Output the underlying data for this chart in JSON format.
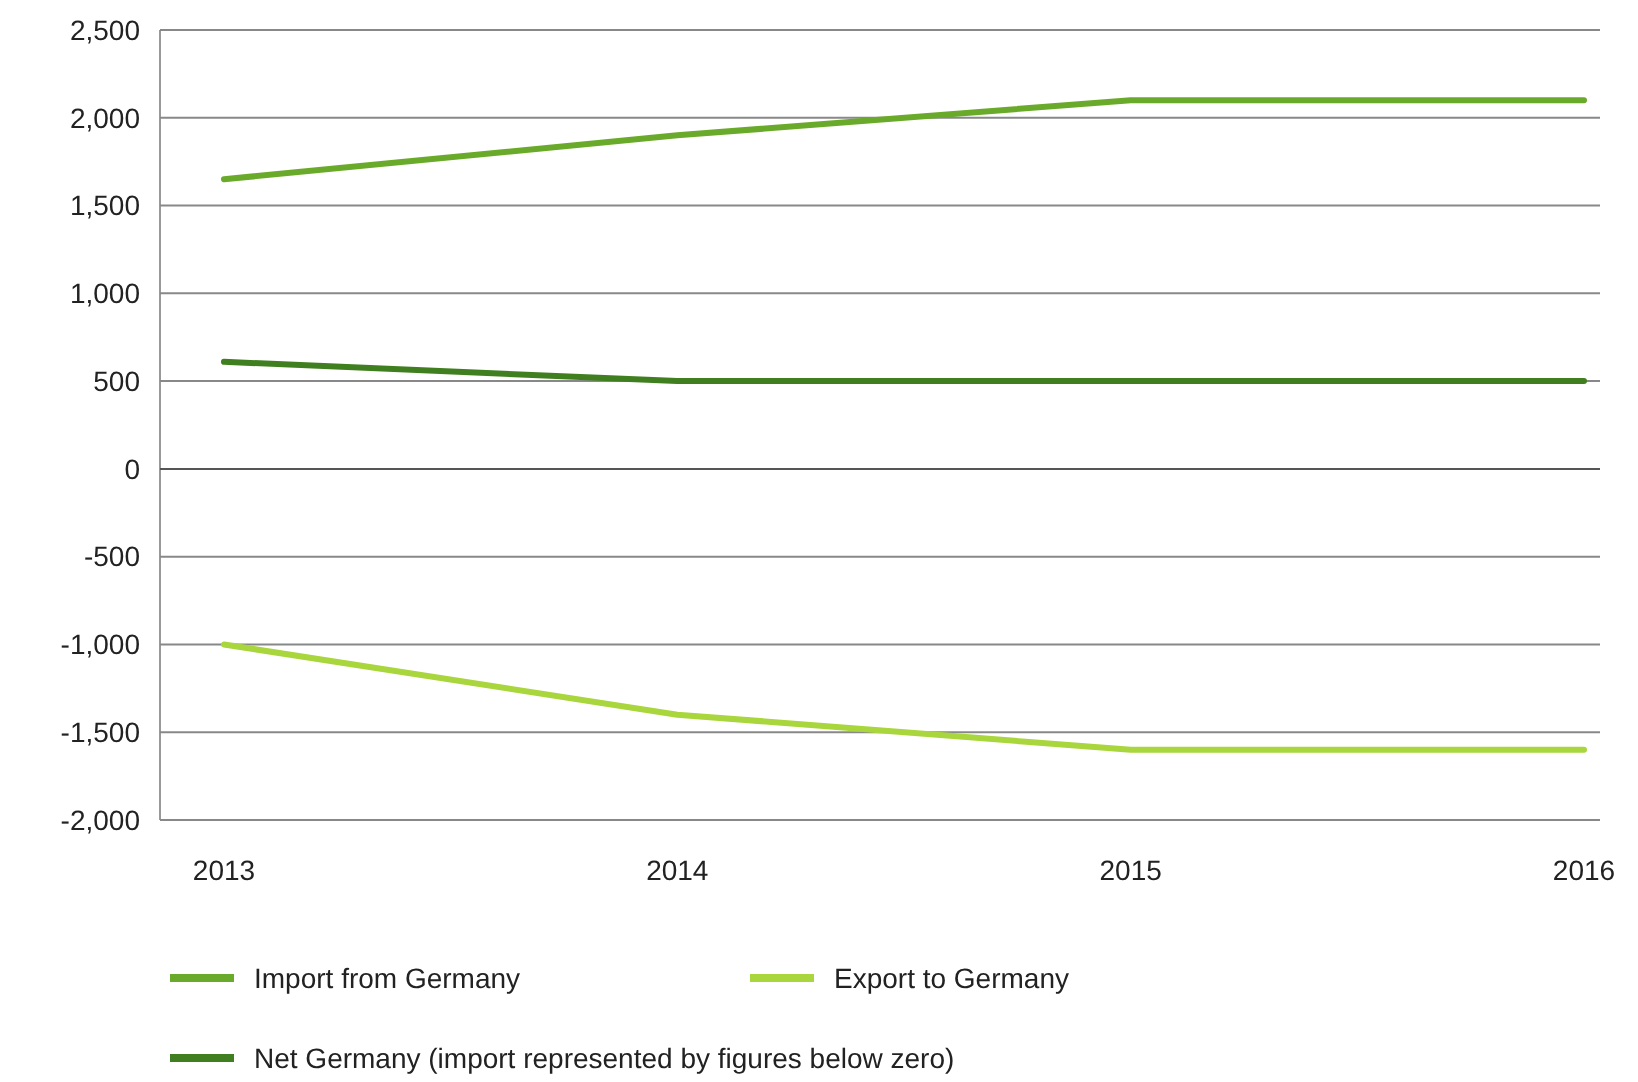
{
  "chart_data": {
    "type": "line",
    "categories": [
      "2013",
      "2014",
      "2015",
      "2016"
    ],
    "series": [
      {
        "name": "Import from Germany",
        "color": "#6aaa2a",
        "values": [
          1650,
          1900,
          2100,
          2100
        ]
      },
      {
        "name": "Export to Germany",
        "color": "#a8d63c",
        "values": [
          -1000,
          -1400,
          -1600,
          -1600
        ]
      },
      {
        "name": "Net Germany (import represented by figures below zero)",
        "color": "#3f7f1f",
        "values": [
          610,
          500,
          500,
          500
        ]
      }
    ],
    "ylim": [
      -2000,
      2500
    ],
    "yticks": [
      {
        "value": -2000,
        "label": "-2,000"
      },
      {
        "value": -1500,
        "label": "-1,500"
      },
      {
        "value": -1000,
        "label": "-1,000"
      },
      -500,
      0,
      500,
      {
        "value": 1000,
        "label": "1,000"
      },
      {
        "value": 1500,
        "label": "1,500"
      },
      {
        "value": 2000,
        "label": "2,000"
      },
      {
        "value": 2500,
        "label": "2,500"
      }
    ],
    "grid": "y",
    "legend": "bottom",
    "marker": "none",
    "line_style": "solid"
  }
}
